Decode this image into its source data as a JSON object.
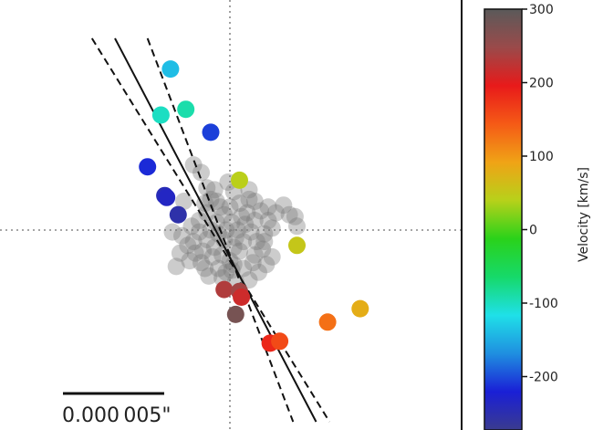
{
  "chart_data": {
    "type": "scatter",
    "title": "",
    "xlabel": "",
    "ylabel": "",
    "grid": false,
    "crosshair": true,
    "colorbar": {
      "label": "Velocity [km/s]",
      "range": [
        -300,
        300
      ],
      "ticks": [
        -300,
        -200,
        -100,
        0,
        100,
        200,
        300
      ],
      "tick_labels": [
        "",
        "-200",
        "-100",
        "0",
        "100",
        "200",
        "300"
      ],
      "colormap": [
        "#3a3b8f",
        "#1a1fd6",
        "#1f8fe0",
        "#1fe0e8",
        "#16d96a",
        "#2ad21a",
        "#b7d11a",
        "#f0a316",
        "#f55a16",
        "#e81a1a",
        "#9a4a4a",
        "#5a5a5a"
      ]
    },
    "scale_bar": {
      "label": "0.000 005\""
    },
    "x_range": [
      -1,
      1
    ],
    "y_range": [
      -1,
      1
    ],
    "lines": [
      {
        "name": "fit",
        "style": "solid",
        "x": [
          -0.6,
          0.45
        ],
        "y": [
          1.0,
          -1.0
        ]
      },
      {
        "name": "lower bound",
        "style": "dashed",
        "x": [
          -0.72,
          0.52
        ],
        "y": [
          1.0,
          -1.0
        ]
      },
      {
        "name": "upper bound",
        "style": "dashed",
        "x": [
          -0.43,
          0.33
        ],
        "y": [
          1.0,
          -1.0
        ]
      }
    ],
    "colored_points": [
      {
        "x": -0.31,
        "y": 0.84,
        "velocity": -160
      },
      {
        "x": -0.23,
        "y": 0.63,
        "velocity": -110
      },
      {
        "x": -0.36,
        "y": 0.6,
        "velocity": -120
      },
      {
        "x": -0.1,
        "y": 0.51,
        "velocity": -230
      },
      {
        "x": -0.43,
        "y": 0.33,
        "velocity": -240
      },
      {
        "x": -0.34,
        "y": 0.18,
        "velocity": -270
      },
      {
        "x": -0.33,
        "y": 0.17,
        "velocity": -260
      },
      {
        "x": -0.27,
        "y": 0.08,
        "velocity": -280
      },
      {
        "x": 0.05,
        "y": 0.26,
        "velocity": 30
      },
      {
        "x": 0.35,
        "y": -0.08,
        "velocity": 40
      },
      {
        "x": 0.68,
        "y": -0.41,
        "velocity": 70
      },
      {
        "x": 0.51,
        "y": -0.48,
        "velocity": 120
      },
      {
        "x": -0.03,
        "y": -0.31,
        "velocity": 230
      },
      {
        "x": 0.05,
        "y": -0.32,
        "velocity": 240
      },
      {
        "x": 0.06,
        "y": -0.35,
        "velocity": 210
      },
      {
        "x": 0.03,
        "y": -0.44,
        "velocity": 275
      },
      {
        "x": 0.21,
        "y": -0.59,
        "velocity": 180
      },
      {
        "x": 0.26,
        "y": -0.58,
        "velocity": 150
      }
    ],
    "grey_points": [
      [
        -0.19,
        0.34
      ],
      [
        -0.15,
        0.3
      ],
      [
        -0.12,
        0.22
      ],
      [
        -0.1,
        0.16
      ],
      [
        -0.05,
        0.12
      ],
      [
        0.02,
        0.2
      ],
      [
        0.05,
        0.14
      ],
      [
        0.1,
        0.16
      ],
      [
        0.13,
        0.15
      ],
      [
        0.16,
        0.1
      ],
      [
        0.2,
        0.12
      ],
      [
        0.24,
        0.09
      ],
      [
        0.28,
        0.13
      ],
      [
        0.31,
        0.08
      ],
      [
        0.34,
        0.07
      ],
      [
        0.2,
        0.05
      ],
      [
        0.22,
        0.01
      ],
      [
        0.18,
        -0.02
      ],
      [
        0.14,
        -0.06
      ],
      [
        0.17,
        -0.1
      ],
      [
        0.22,
        -0.14
      ],
      [
        0.19,
        -0.18
      ],
      [
        0.15,
        -0.22
      ],
      [
        0.12,
        -0.17
      ],
      [
        0.1,
        -0.26
      ],
      [
        0.07,
        -0.2
      ],
      [
        0.02,
        -0.18
      ],
      [
        -0.02,
        -0.22
      ],
      [
        -0.06,
        -0.2
      ],
      [
        -0.11,
        -0.24
      ],
      [
        -0.15,
        -0.17
      ],
      [
        -0.18,
        -0.12
      ],
      [
        -0.22,
        -0.08
      ],
      [
        -0.25,
        -0.03
      ],
      [
        -0.2,
        0.02
      ],
      [
        -0.16,
        0.05
      ],
      [
        -0.12,
        0.09
      ],
      [
        -0.07,
        0.04
      ],
      [
        -0.03,
        0.08
      ],
      [
        0.01,
        0.04
      ],
      [
        0.04,
        0.0
      ],
      [
        0.08,
        0.03
      ],
      [
        0.11,
        -0.01
      ],
      [
        0.07,
        -0.06
      ],
      [
        0.02,
        -0.09
      ],
      [
        -0.03,
        -0.05
      ],
      [
        -0.08,
        -0.09
      ],
      [
        -0.12,
        -0.05
      ],
      [
        -0.16,
        -0.01
      ],
      [
        -0.09,
        -0.14
      ],
      [
        -0.04,
        -0.13
      ],
      [
        0.0,
        -0.16
      ],
      [
        0.05,
        -0.11
      ],
      [
        -0.13,
        0.14
      ],
      [
        -0.08,
        0.21
      ],
      [
        0.0,
        0.12
      ],
      [
        0.09,
        0.09
      ],
      [
        -0.02,
        0.0
      ],
      [
        -0.06,
        -0.02
      ],
      [
        0.03,
        -0.04
      ],
      [
        -0.1,
        0.0
      ],
      [
        -0.14,
        -0.11
      ],
      [
        -0.19,
        -0.06
      ],
      [
        0.06,
        0.07
      ],
      [
        0.13,
        0.05
      ],
      [
        -0.01,
        0.25
      ],
      [
        -0.24,
        0.15
      ],
      [
        -0.28,
        -0.19
      ],
      [
        -0.26,
        -0.12
      ],
      [
        -0.3,
        -0.01
      ],
      [
        0.35,
        0.02
      ],
      [
        0.13,
        -0.13
      ],
      [
        -0.13,
        -0.2
      ],
      [
        -0.04,
        -0.25
      ],
      [
        0.03,
        -0.27
      ],
      [
        0.18,
        -0.06
      ],
      [
        0.1,
        0.21
      ],
      [
        -0.21,
        -0.16
      ],
      [
        -0.07,
        0.15
      ],
      [
        0.01,
        -0.21
      ]
    ]
  }
}
